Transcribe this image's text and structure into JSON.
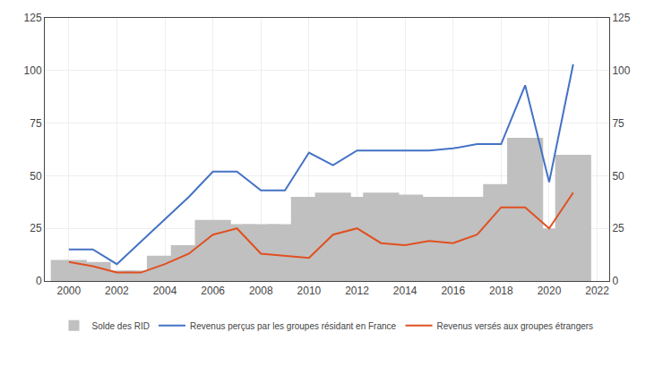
{
  "chart_data": {
    "type": "bar",
    "series": [
      {
        "name": "Solde des RID",
        "type": "bar",
        "color": "#c0c0c0",
        "x": [
          2000,
          2001,
          2002,
          2003,
          2004,
          2005,
          2006,
          2007,
          2008,
          2009,
          2010,
          2011,
          2012,
          2013,
          2014,
          2015,
          2016,
          2017,
          2018,
          2019,
          2020,
          2021
        ],
        "values": [
          10,
          9,
          5,
          5,
          12,
          17,
          29,
          27,
          27,
          27,
          40,
          42,
          40,
          42,
          41,
          40,
          40,
          40,
          46,
          68,
          25,
          60
        ]
      },
      {
        "name": "Revenus perçus par les groupes résidant en France",
        "type": "line",
        "color": "#4472c4",
        "x": [
          2000,
          2001,
          2002,
          2005,
          2006,
          2007,
          2008,
          2009,
          2010,
          2011,
          2012,
          2013,
          2014,
          2015,
          2016,
          2017,
          2018,
          2019,
          2020,
          2021
        ],
        "values": [
          15,
          15,
          8,
          40,
          52,
          52,
          43,
          43,
          61,
          55,
          62,
          62,
          62,
          62,
          63,
          65,
          65,
          93,
          47,
          103
        ]
      },
      {
        "name": "Revenus versés aux groupes étrangers",
        "type": "line",
        "color": "#e05020",
        "x": [
          2000,
          2001,
          2002,
          2003,
          2004,
          2005,
          2006,
          2007,
          2008,
          2009,
          2010,
          2011,
          2012,
          2013,
          2014,
          2015,
          2016,
          2017,
          2018,
          2019,
          2020,
          2021
        ],
        "values": [
          9,
          7,
          4,
          4,
          8,
          13,
          22,
          25,
          13,
          12,
          11,
          22,
          25,
          18,
          17,
          19,
          18,
          22,
          35,
          35,
          25,
          42
        ]
      }
    ],
    "xlim": [
      1999.0,
      2022.5
    ],
    "xticks": [
      2000,
      2002,
      2004,
      2006,
      2008,
      2010,
      2012,
      2014,
      2016,
      2018,
      2020,
      2022
    ],
    "ylim": [
      0,
      125
    ],
    "yticks": [
      0,
      25,
      50,
      75,
      100,
      125
    ],
    "y2lim": [
      0,
      125
    ],
    "y2ticks": [
      0,
      25,
      50,
      75,
      100,
      125
    ],
    "grid": true,
    "legend": "bottom"
  }
}
